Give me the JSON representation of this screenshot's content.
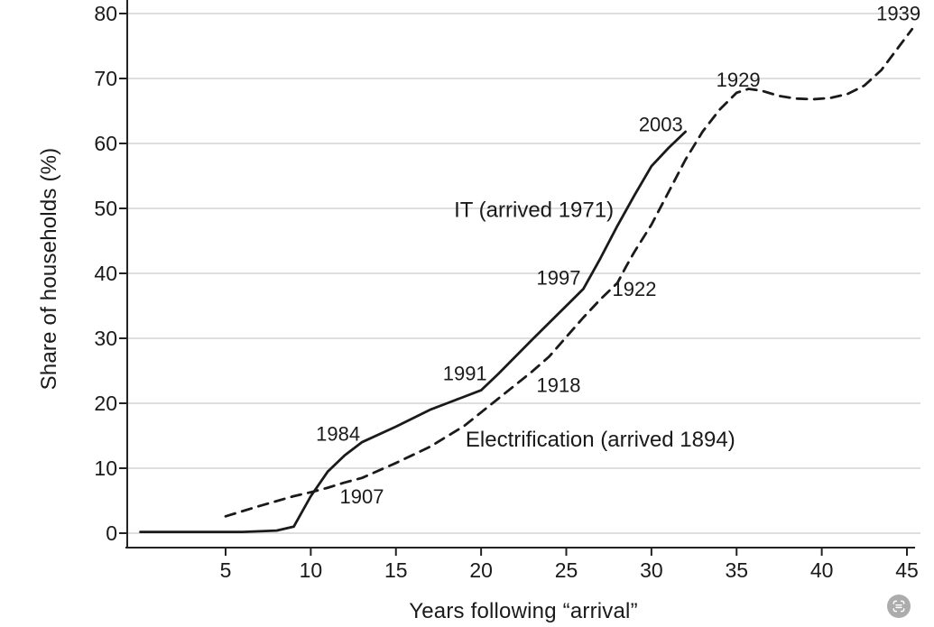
{
  "chart_data": {
    "type": "line",
    "title": "",
    "xlabel": "Years following “arrival”",
    "ylabel": "Share of households (%)",
    "xlim": [
      -0.8,
      46.5
    ],
    "ylim": [
      0,
      80
    ],
    "x_ticks": [
      5,
      10,
      15,
      20,
      25,
      30,
      35,
      40,
      45
    ],
    "y_ticks": [
      0,
      10,
      20,
      30,
      40,
      50,
      60,
      70,
      80
    ],
    "grid": "horizontal-light",
    "legend_position": "inline-labels",
    "colors": {
      "line": "#1a1a1a",
      "grid": "#d9d9d9",
      "axis": "#222222",
      "text": "#1a1a1a",
      "badge": "#acacac"
    },
    "series": [
      {
        "name": "IT (arrived 1971)",
        "style": "solid",
        "points": [
          [
            0,
            0.2
          ],
          [
            2,
            0.2
          ],
          [
            4,
            0.2
          ],
          [
            6,
            0.2
          ],
          [
            8,
            0.4
          ],
          [
            9,
            1
          ],
          [
            10,
            5.7
          ],
          [
            11,
            9.5
          ],
          [
            12,
            12
          ],
          [
            13,
            14
          ],
          [
            15,
            16.4
          ],
          [
            17,
            19
          ],
          [
            18,
            20
          ],
          [
            20,
            22
          ],
          [
            21,
            24.5
          ],
          [
            23,
            29.8
          ],
          [
            26,
            37.6
          ],
          [
            27,
            42.3
          ],
          [
            28,
            47.3
          ],
          [
            29,
            52
          ],
          [
            30,
            56.5
          ],
          [
            31,
            59.3
          ],
          [
            32,
            61.8
          ]
        ]
      },
      {
        "name": "Electrification (arrived 1894)",
        "style": "dashed",
        "points": [
          [
            5,
            2.6
          ],
          [
            7,
            4.2
          ],
          [
            9,
            5.7
          ],
          [
            10,
            6.3
          ],
          [
            11,
            7
          ],
          [
            12,
            7.8
          ],
          [
            13,
            8.5
          ],
          [
            15,
            10.8
          ],
          [
            17,
            13.3
          ],
          [
            19,
            16.5
          ],
          [
            21,
            20.7
          ],
          [
            23,
            24.9
          ],
          [
            24,
            27.2
          ],
          [
            25,
            30.2
          ],
          [
            26,
            33.2
          ],
          [
            27,
            36
          ],
          [
            28,
            38.5
          ],
          [
            28.5,
            41
          ],
          [
            29,
            43.3
          ],
          [
            30,
            47.5
          ],
          [
            31,
            52.5
          ],
          [
            32,
            57.5
          ],
          [
            33,
            61.8
          ],
          [
            34,
            65.2
          ],
          [
            35,
            67.8
          ],
          [
            35.7,
            68.4
          ],
          [
            36.5,
            68.1
          ],
          [
            37.5,
            67.3
          ],
          [
            38.5,
            66.9
          ],
          [
            39.5,
            66.8
          ],
          [
            40.5,
            67
          ],
          [
            41.5,
            67.6
          ],
          [
            42.5,
            68.9
          ],
          [
            43.5,
            71.3
          ],
          [
            44.5,
            74.8
          ],
          [
            45.3,
            77.6
          ]
        ]
      }
    ],
    "annotations": [
      {
        "text": "1984",
        "x": 11.6,
        "y": 15.3,
        "kind": "year"
      },
      {
        "text": "1991",
        "x": 19.05,
        "y": 24.6,
        "kind": "year"
      },
      {
        "text": "1997",
        "x": 24.55,
        "y": 39.3,
        "kind": "year"
      },
      {
        "text": "2003",
        "x": 30.55,
        "y": 62.9,
        "kind": "year"
      },
      {
        "text": "1907",
        "x": 13.0,
        "y": 5.6,
        "kind": "year"
      },
      {
        "text": "1918",
        "x": 24.55,
        "y": 22.8,
        "kind": "year"
      },
      {
        "text": "1922",
        "x": 29.0,
        "y": 37.6,
        "kind": "year"
      },
      {
        "text": "1929",
        "x": 35.1,
        "y": 69.8,
        "kind": "year"
      },
      {
        "text": "1939",
        "x": 44.5,
        "y": 80.0,
        "kind": "year"
      },
      {
        "text": "IT (arrived 1971)",
        "x": 23.1,
        "y": 49.7,
        "kind": "series-label"
      },
      {
        "text": "Electrification (arrived 1894)",
        "x": 27.0,
        "y": 14.4,
        "kind": "series-label"
      }
    ]
  },
  "icons": {
    "corner_badge": "scan-text-icon"
  }
}
